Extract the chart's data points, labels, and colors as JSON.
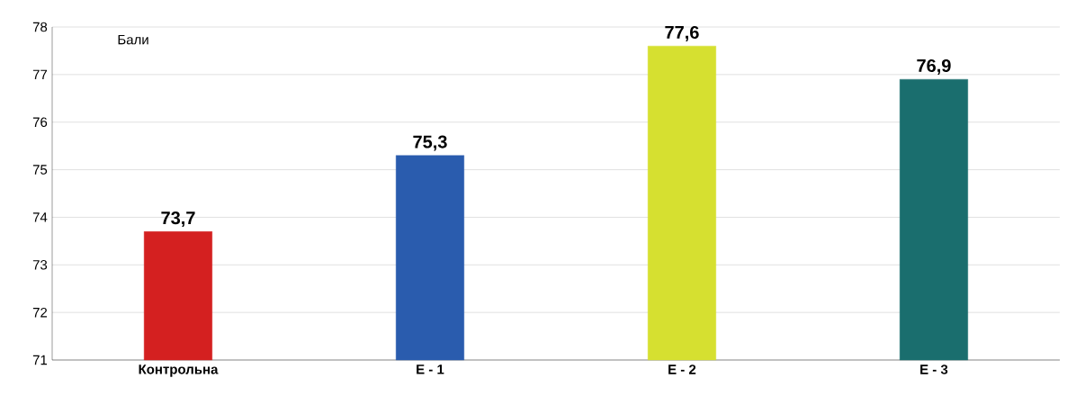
{
  "chart_data": {
    "type": "bar",
    "ylabel": "Бали",
    "categories": [
      "Контрольна",
      "Е - 1",
      "Е - 2",
      "Е - 3"
    ],
    "values": [
      73.7,
      75.3,
      77.6,
      76.9
    ],
    "value_labels": [
      "73,7",
      "75,3",
      "77,6",
      "76,9"
    ],
    "colors": [
      "#d42020",
      "#2a5cae",
      "#d6e030",
      "#1a6e6e"
    ],
    "ylim": [
      71,
      78
    ],
    "yticks": [
      71,
      72,
      73,
      74,
      75,
      76,
      77,
      78
    ],
    "grid": "y"
  }
}
